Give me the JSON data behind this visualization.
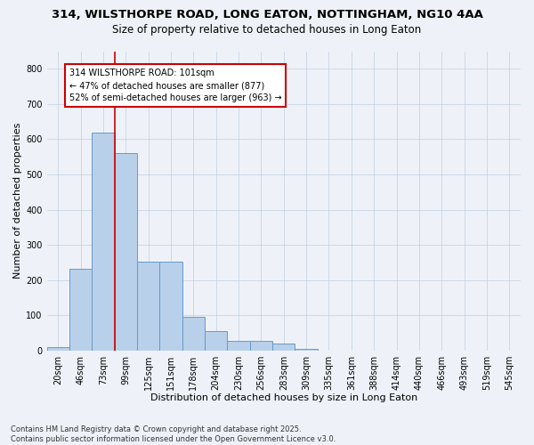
{
  "title": "314, WILSTHORPE ROAD, LONG EATON, NOTTINGHAM, NG10 4AA",
  "subtitle": "Size of property relative to detached houses in Long Eaton",
  "xlabel": "Distribution of detached houses by size in Long Eaton",
  "ylabel": "Number of detached properties",
  "categories": [
    "20sqm",
    "46sqm",
    "73sqm",
    "99sqm",
    "125sqm",
    "151sqm",
    "178sqm",
    "204sqm",
    "230sqm",
    "256sqm",
    "283sqm",
    "309sqm",
    "335sqm",
    "361sqm",
    "388sqm",
    "414sqm",
    "440sqm",
    "466sqm",
    "493sqm",
    "519sqm",
    "545sqm"
  ],
  "values": [
    10,
    233,
    620,
    560,
    252,
    252,
    97,
    55,
    27,
    27,
    20,
    5,
    1,
    0,
    0,
    0,
    0,
    0,
    0,
    0,
    0
  ],
  "bar_color": "#b8d0ea",
  "bar_edge_color": "#6899c8",
  "vline_x": 2.5,
  "vline_color": "#cc0000",
  "annotation_text": "314 WILSTHORPE ROAD: 101sqm\n← 47% of detached houses are smaller (877)\n52% of semi-detached houses are larger (963) →",
  "annotation_box_color": "#ffffff",
  "annotation_box_edge": "#cc0000",
  "footer_line1": "Contains HM Land Registry data © Crown copyright and database right 2025.",
  "footer_line2": "Contains public sector information licensed under the Open Government Licence v3.0.",
  "background_color": "#eef2f8",
  "ylim": [
    0,
    850
  ],
  "yticks": [
    0,
    100,
    200,
    300,
    400,
    500,
    600,
    700,
    800
  ],
  "title_fontsize": 9.5,
  "subtitle_fontsize": 8.5,
  "xlabel_fontsize": 8,
  "ylabel_fontsize": 8,
  "tick_fontsize": 7,
  "annotation_fontsize": 7,
  "footer_fontsize": 6
}
